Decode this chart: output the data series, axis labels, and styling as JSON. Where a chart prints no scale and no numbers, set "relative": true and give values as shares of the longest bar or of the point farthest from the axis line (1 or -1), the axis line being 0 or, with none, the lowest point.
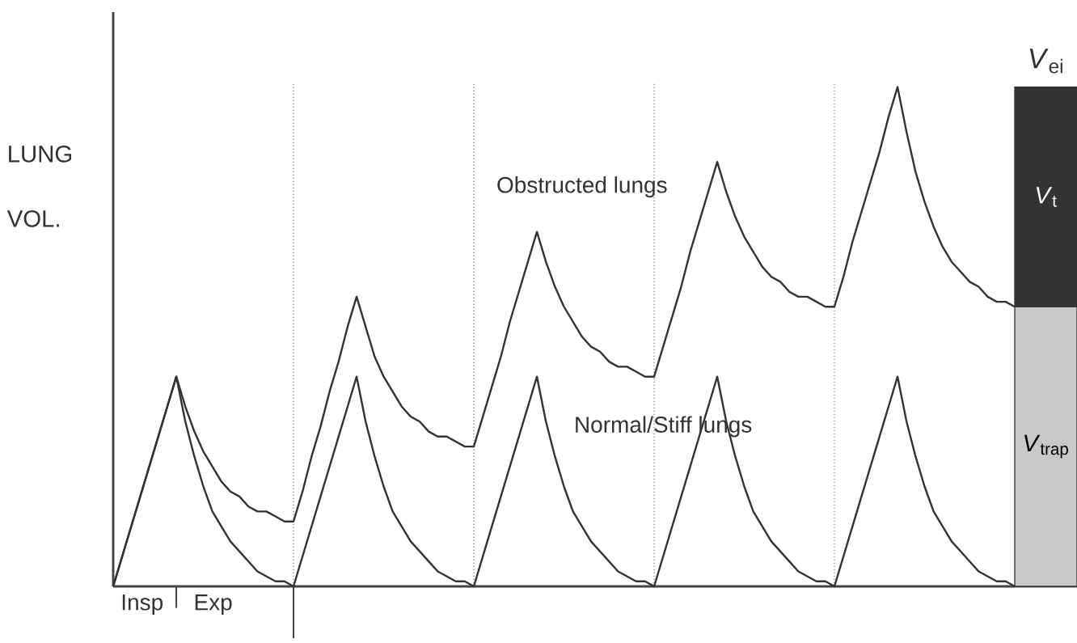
{
  "chart_data": [
    {
      "type": "line",
      "relative": true,
      "ylabel": "LUNG VOL.",
      "marker": "none",
      "line_style": "solid",
      "categories": [
        null,
        null,
        null,
        null,
        null,
        null,
        null,
        null,
        null,
        null,
        null,
        null,
        null,
        null,
        null,
        null,
        null,
        null,
        null,
        null,
        null,
        null,
        null,
        null,
        null,
        null,
        null,
        null,
        null,
        null,
        null,
        null,
        null,
        null,
        null,
        null,
        null,
        null,
        null,
        null,
        null,
        null,
        null,
        null,
        null,
        null,
        null,
        null,
        null,
        null,
        null,
        null,
        null,
        null,
        null,
        null,
        null,
        null,
        null,
        null,
        null,
        null,
        null,
        null,
        null,
        null,
        null,
        null,
        null,
        null,
        null,
        null,
        null,
        null,
        null,
        null,
        null,
        null,
        null,
        null,
        null,
        null,
        null,
        null,
        null,
        null,
        null,
        null,
        null,
        null,
        null,
        null,
        null,
        null,
        null,
        null,
        null,
        null,
        null,
        null,
        null
      ],
      "series": [
        {
          "name": "Obstructed lungs",
          "color": "#333333",
          "values": [
            0,
            0.06,
            0.12,
            0.18,
            0.24,
            0.3,
            0.36,
            0.42,
            0.36,
            0.31,
            0.27,
            0.24,
            0.21,
            0.19,
            0.18,
            0.16,
            0.15,
            0.15,
            0.14,
            0.13,
            0.13,
            0.19,
            0.26,
            0.32,
            0.39,
            0.45,
            0.52,
            0.58,
            0.52,
            0.46,
            0.42,
            0.39,
            0.36,
            0.34,
            0.33,
            0.31,
            0.3,
            0.3,
            0.29,
            0.28,
            0.28,
            0.34,
            0.4,
            0.46,
            0.53,
            0.59,
            0.65,
            0.71,
            0.65,
            0.6,
            0.56,
            0.53,
            0.5,
            0.48,
            0.47,
            0.45,
            0.44,
            0.44,
            0.43,
            0.42,
            0.42,
            0.48,
            0.54,
            0.6,
            0.67,
            0.73,
            0.79,
            0.85,
            0.79,
            0.74,
            0.7,
            0.67,
            0.64,
            0.62,
            0.61,
            0.59,
            0.58,
            0.58,
            0.57,
            0.56,
            0.56,
            0.62,
            0.69,
            0.75,
            0.81,
            0.87,
            0.94,
            1.0,
            0.91,
            0.83,
            0.77,
            0.72,
            0.68,
            0.65,
            0.63,
            0.61,
            0.6,
            0.58,
            0.57,
            0.57,
            0.56
          ]
        },
        {
          "name": "Normal/Stiff lungs",
          "color": "#333333",
          "values": [
            0,
            0.06,
            0.12,
            0.18,
            0.24,
            0.3,
            0.36,
            0.42,
            0.33,
            0.26,
            0.2,
            0.15,
            0.12,
            0.09,
            0.07,
            0.05,
            0.03,
            0.02,
            0.01,
            0.01,
            0,
            0.06,
            0.12,
            0.18,
            0.24,
            0.3,
            0.36,
            0.42,
            0.33,
            0.26,
            0.2,
            0.15,
            0.12,
            0.09,
            0.07,
            0.05,
            0.03,
            0.02,
            0.01,
            0.01,
            0,
            0.06,
            0.12,
            0.18,
            0.24,
            0.3,
            0.36,
            0.42,
            0.33,
            0.26,
            0.2,
            0.15,
            0.12,
            0.09,
            0.07,
            0.05,
            0.03,
            0.02,
            0.01,
            0.01,
            0,
            0.06,
            0.12,
            0.18,
            0.24,
            0.3,
            0.36,
            0.42,
            0.33,
            0.26,
            0.2,
            0.15,
            0.12,
            0.09,
            0.07,
            0.05,
            0.03,
            0.02,
            0.01,
            0.01,
            0,
            0.06,
            0.12,
            0.18,
            0.24,
            0.3,
            0.36,
            0.42,
            0.33,
            0.26,
            0.2,
            0.15,
            0.12,
            0.09,
            0.07,
            0.05,
            0.03,
            0.02,
            0.01,
            0.01,
            0
          ]
        }
      ],
      "grid": "x",
      "annotations": [
        "Insp",
        "Exp"
      ]
    },
    {
      "type": "bar",
      "relative": true,
      "stacked": true,
      "categories": [
        null
      ],
      "series": [
        {
          "name": "*V*$_{trap}$",
          "color": "#c8c8c8",
          "values": [
            0.56
          ]
        },
        {
          "name": "*V*$_{t}$",
          "color": "#333333",
          "values": [
            0.44
          ]
        }
      ],
      "annotations": [
        "*V*$_{ei}$"
      ]
    }
  ]
}
